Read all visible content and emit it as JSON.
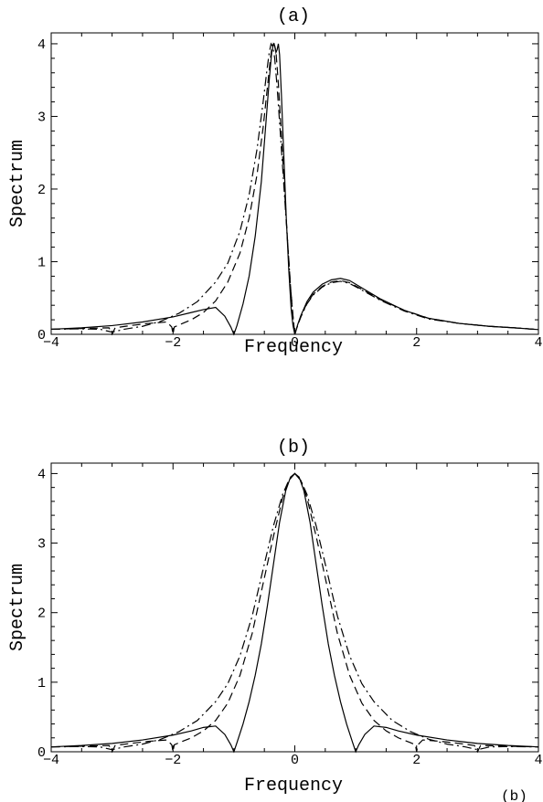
{
  "chart_data": [
    {
      "type": "line",
      "title": "(a)",
      "xlabel": "Frequency",
      "ylabel": "Spectrum",
      "xlim": [
        -4,
        4
      ],
      "ylim": [
        0,
        4.15
      ],
      "xticks": [
        -4,
        -2,
        0,
        2,
        4
      ],
      "yticks": [
        0,
        1,
        2,
        3,
        4
      ],
      "grid": false,
      "series": [
        {
          "style": "solid",
          "x": [
            -4,
            -3.5,
            -3,
            -2.5,
            -2,
            -1.7,
            -1.5,
            -1.3,
            -1.15,
            -1.05,
            -1.0,
            -0.95,
            -0.85,
            -0.75,
            -0.65,
            -0.55,
            -0.48,
            -0.42,
            -0.38,
            -0.35,
            -0.33,
            -0.31,
            -0.29,
            -0.27,
            -0.25,
            -0.22,
            -0.18,
            -0.14,
            -0.1,
            -0.06,
            -0.03,
            0,
            0.05,
            0.1,
            0.2,
            0.3,
            0.45,
            0.6,
            0.75,
            0.9,
            1.1,
            1.4,
            1.8,
            2.2,
            2.7,
            3.2,
            3.6,
            4
          ],
          "y": [
            0.07,
            0.09,
            0.12,
            0.17,
            0.24,
            0.3,
            0.34,
            0.37,
            0.25,
            0.1,
            0,
            0.12,
            0.42,
            0.8,
            1.35,
            2.1,
            2.85,
            3.5,
            3.88,
            4.0,
            3.97,
            3.88,
            3.92,
            4.0,
            3.85,
            3.3,
            2.45,
            1.6,
            0.9,
            0.35,
            0.12,
            0,
            0.14,
            0.26,
            0.45,
            0.58,
            0.69,
            0.75,
            0.77,
            0.74,
            0.64,
            0.49,
            0.33,
            0.22,
            0.15,
            0.11,
            0.09,
            0.065
          ]
        },
        {
          "style": "dashed",
          "x": [
            -4,
            -3.5,
            -3.05,
            -3.0,
            -2.95,
            -2.7,
            -2.4,
            -2.1,
            -2.02,
            -2.0,
            -1.98,
            -1.9,
            -1.7,
            -1.5,
            -1.3,
            -1.1,
            -0.9,
            -0.75,
            -0.62,
            -0.52,
            -0.45,
            -0.4,
            -0.37,
            -0.34,
            -0.31,
            -0.27,
            -0.22,
            -0.17,
            -0.12,
            -0.07,
            -0.03,
            0,
            0.05,
            0.1,
            0.2,
            0.3,
            0.45,
            0.6,
            0.75,
            0.9,
            1.1,
            1.4,
            1.8,
            2.2,
            2.7,
            3.2,
            3.6,
            4
          ],
          "y": [
            0.07,
            0.08,
            0.09,
            0.0,
            0.09,
            0.12,
            0.15,
            0.17,
            0.1,
            0.0,
            0.1,
            0.13,
            0.2,
            0.3,
            0.46,
            0.72,
            1.12,
            1.6,
            2.2,
            2.85,
            3.4,
            3.8,
            3.98,
            4.0,
            3.9,
            3.45,
            2.75,
            2.0,
            1.3,
            0.65,
            0.25,
            0,
            0.13,
            0.25,
            0.43,
            0.55,
            0.66,
            0.72,
            0.74,
            0.71,
            0.62,
            0.48,
            0.33,
            0.22,
            0.15,
            0.11,
            0.09,
            0.065
          ]
        },
        {
          "style": "dashdot",
          "x": [
            -4,
            -3.5,
            -3.2,
            -3.0,
            -2.8,
            -2.5,
            -2.2,
            -1.9,
            -1.6,
            -1.3,
            -1.1,
            -0.9,
            -0.75,
            -0.62,
            -0.52,
            -0.46,
            -0.42,
            -0.39,
            -0.36,
            -0.33,
            -0.29,
            -0.24,
            -0.18,
            -0.12,
            -0.07,
            -0.03,
            0,
            0.05,
            0.1,
            0.2,
            0.3,
            0.45,
            0.6,
            0.75,
            0.9,
            1.1,
            1.4,
            1.8,
            2.2,
            2.7,
            3.2,
            3.6,
            4
          ],
          "y": [
            0.07,
            0.075,
            0.07,
            0.03,
            0.07,
            0.11,
            0.18,
            0.29,
            0.45,
            0.72,
            0.98,
            1.42,
            1.92,
            2.55,
            3.2,
            3.62,
            3.88,
            4.0,
            3.96,
            3.8,
            3.4,
            2.8,
            2.05,
            1.3,
            0.65,
            0.25,
            0,
            0.13,
            0.24,
            0.42,
            0.54,
            0.65,
            0.71,
            0.73,
            0.7,
            0.61,
            0.47,
            0.32,
            0.21,
            0.15,
            0.11,
            0.09,
            0.065
          ]
        }
      ]
    },
    {
      "type": "line",
      "title": "(b)",
      "xlabel": "Frequency",
      "ylabel": "Spectrum",
      "xlim": [
        -4,
        4
      ],
      "ylim": [
        0,
        4.15
      ],
      "xticks": [
        -4,
        -2,
        0,
        2,
        4
      ],
      "yticks": [
        0,
        1,
        2,
        3,
        4
      ],
      "grid": false,
      "series": [
        {
          "style": "solid",
          "x": [
            -4,
            -3.5,
            -3,
            -2.5,
            -2,
            -1.7,
            -1.5,
            -1.3,
            -1.15,
            -1.05,
            -1.0,
            -0.95,
            -0.85,
            -0.75,
            -0.65,
            -0.55,
            -0.45,
            -0.35,
            -0.25,
            -0.15,
            -0.07,
            0,
            0.07,
            0.15,
            0.25,
            0.35,
            0.45,
            0.55,
            0.65,
            0.75,
            0.85,
            0.95,
            1.0,
            1.05,
            1.15,
            1.3,
            1.5,
            1.7,
            2,
            2.5,
            3,
            3.5,
            4
          ],
          "y": [
            0.07,
            0.09,
            0.12,
            0.17,
            0.24,
            0.3,
            0.35,
            0.37,
            0.25,
            0.1,
            0,
            0.13,
            0.4,
            0.72,
            1.1,
            1.55,
            2.1,
            2.7,
            3.3,
            3.75,
            3.95,
            4.0,
            3.95,
            3.75,
            3.3,
            2.7,
            2.1,
            1.55,
            1.1,
            0.72,
            0.4,
            0.13,
            0,
            0.1,
            0.25,
            0.37,
            0.35,
            0.3,
            0.24,
            0.17,
            0.12,
            0.09,
            0.07
          ]
        },
        {
          "style": "dashed",
          "x": [
            -4,
            -3.5,
            -3.05,
            -3.0,
            -2.95,
            -2.7,
            -2.4,
            -2.1,
            -2.02,
            -2.0,
            -1.98,
            -1.9,
            -1.7,
            -1.5,
            -1.3,
            -1.1,
            -0.9,
            -0.7,
            -0.5,
            -0.35,
            -0.2,
            -0.1,
            0,
            0.1,
            0.2,
            0.35,
            0.5,
            0.7,
            0.9,
            1.1,
            1.3,
            1.5,
            1.7,
            1.9,
            1.98,
            2.0,
            2.02,
            2.1,
            2.4,
            2.7,
            2.95,
            3.0,
            3.05,
            3.5,
            4
          ],
          "y": [
            0.07,
            0.08,
            0.09,
            0.0,
            0.09,
            0.12,
            0.15,
            0.17,
            0.1,
            0.0,
            0.1,
            0.13,
            0.2,
            0.3,
            0.45,
            0.7,
            1.1,
            1.7,
            2.5,
            3.1,
            3.65,
            3.9,
            4.0,
            3.9,
            3.65,
            3.1,
            2.5,
            1.7,
            1.1,
            0.7,
            0.45,
            0.3,
            0.2,
            0.13,
            0.1,
            0.0,
            0.1,
            0.17,
            0.15,
            0.12,
            0.09,
            0.0,
            0.09,
            0.08,
            0.07
          ]
        },
        {
          "style": "dashdot",
          "x": [
            -4,
            -3.5,
            -3.2,
            -3.0,
            -2.8,
            -2.5,
            -2.2,
            -1.9,
            -1.6,
            -1.3,
            -1.1,
            -0.9,
            -0.7,
            -0.5,
            -0.35,
            -0.2,
            -0.1,
            0,
            0.1,
            0.2,
            0.35,
            0.5,
            0.7,
            0.9,
            1.1,
            1.3,
            1.6,
            1.9,
            2.2,
            2.5,
            2.8,
            3.0,
            3.2,
            3.5,
            4
          ],
          "y": [
            0.07,
            0.075,
            0.07,
            0.03,
            0.07,
            0.11,
            0.18,
            0.29,
            0.45,
            0.72,
            0.98,
            1.38,
            1.95,
            2.7,
            3.25,
            3.7,
            3.9,
            4.0,
            3.9,
            3.7,
            3.25,
            2.7,
            1.95,
            1.38,
            0.98,
            0.72,
            0.45,
            0.29,
            0.18,
            0.11,
            0.07,
            0.03,
            0.07,
            0.075,
            0.07
          ]
        }
      ]
    }
  ],
  "caption_fragment": "(b)"
}
